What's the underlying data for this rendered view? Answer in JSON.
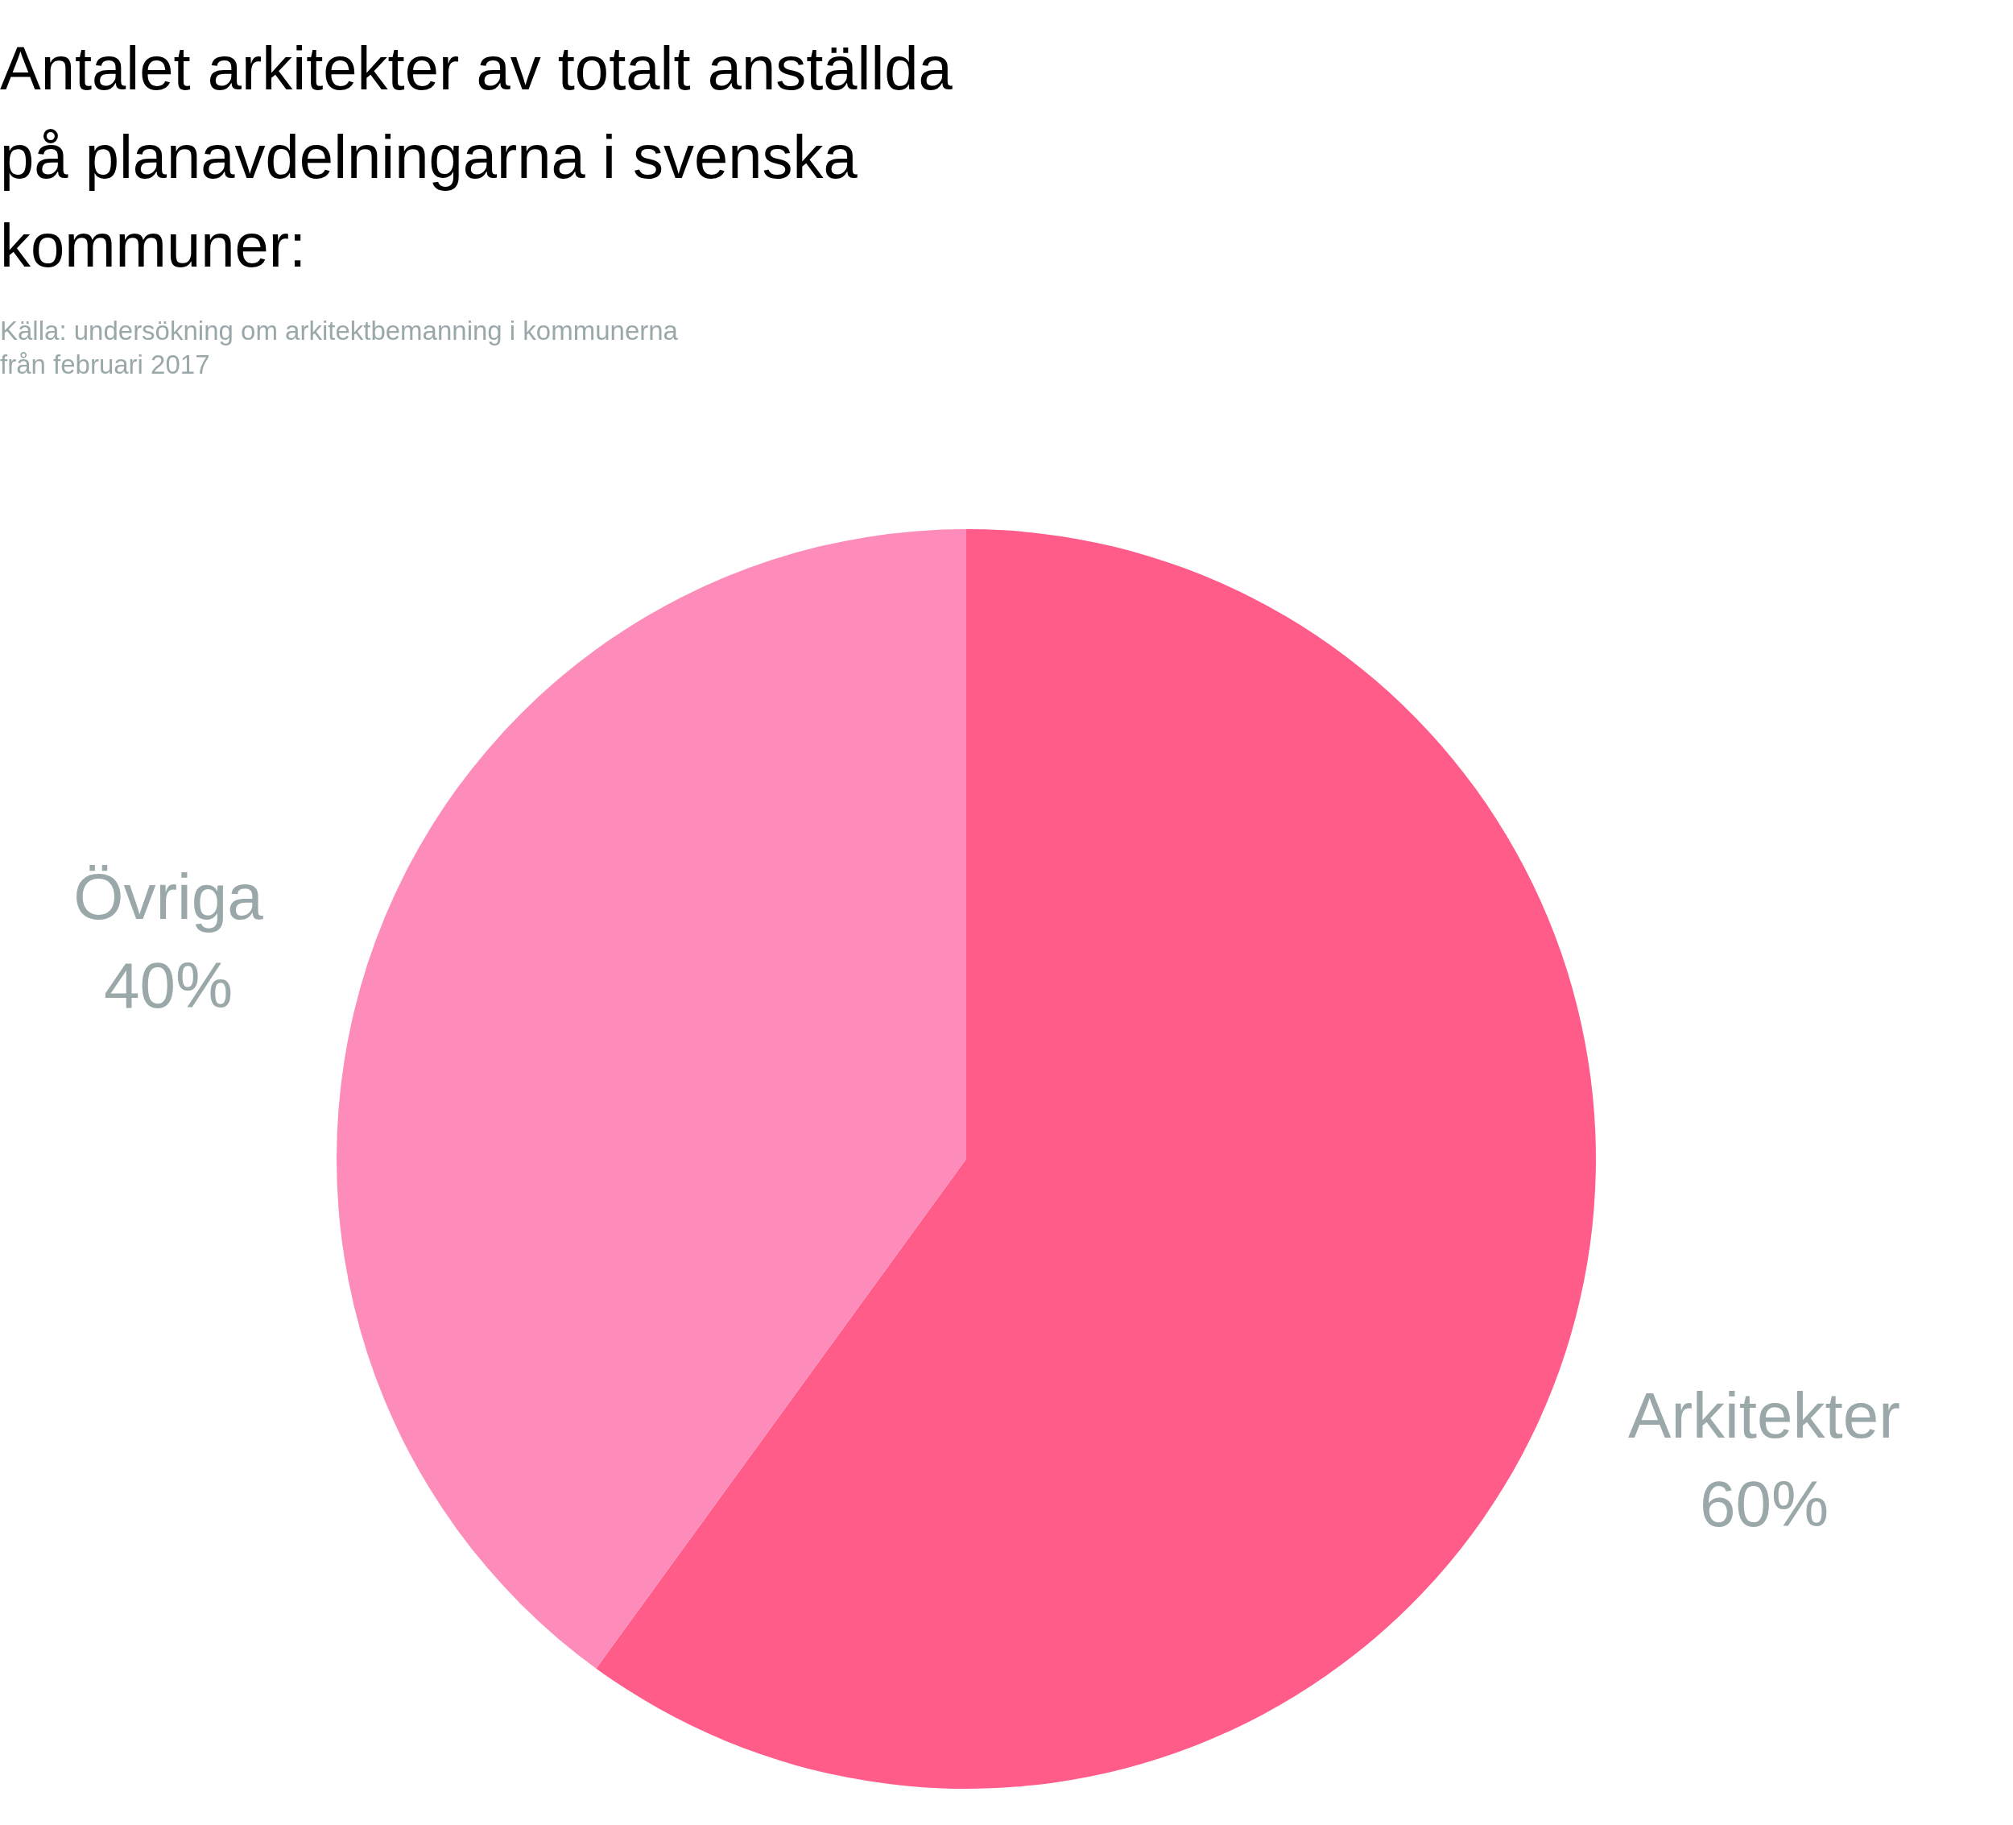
{
  "chart_data": {
    "type": "pie",
    "title": "Antalet arkitekter av totalt anställda på planavdelningarna i svenska kommuner:",
    "annotations": [
      "Källa: undersökning om arkitektbemanning i kommunerna från februari 2017"
    ],
    "categories": [
      "Arkitekter",
      "Övriga"
    ],
    "values": [
      60,
      40
    ],
    "colors": [
      "#ff5c8a",
      "#fd8cba"
    ],
    "value_labels": [
      "60%",
      "40%"
    ]
  }
}
